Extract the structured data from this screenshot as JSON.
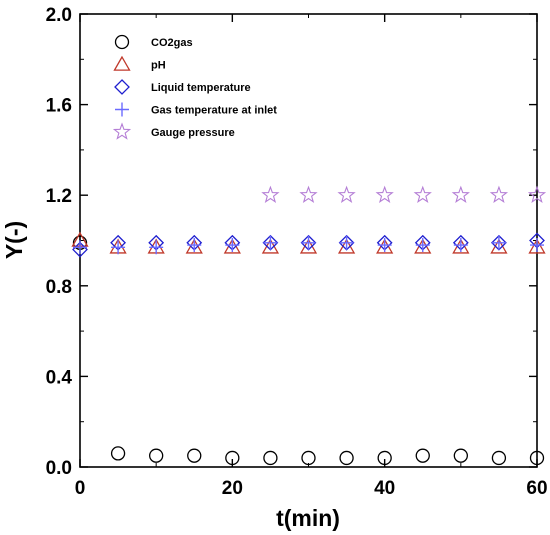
{
  "chart_data": {
    "type": "scatter",
    "xlabel": "t(min)",
    "ylabel": "Y(-)",
    "xlim": [
      0,
      60
    ],
    "ylim": [
      0,
      2.0
    ],
    "x_ticks": [
      "0",
      "20",
      "40",
      "60"
    ],
    "y_ticks": [
      "0.0",
      "0.4",
      "0.8",
      "1.2",
      "1.6",
      "2.0"
    ],
    "grid": false,
    "legend_position": "top-left",
    "series": [
      {
        "name": "CO2gas",
        "marker": "circle",
        "color": "#000000",
        "x": [
          0,
          5,
          10,
          15,
          20,
          25,
          30,
          35,
          40,
          45,
          50,
          55,
          60
        ],
        "y": [
          0.99,
          0.06,
          0.05,
          0.05,
          0.04,
          0.04,
          0.04,
          0.04,
          0.04,
          0.05,
          0.05,
          0.04,
          0.04
        ]
      },
      {
        "name": "pH",
        "marker": "triangle",
        "color": "#c0392b",
        "x": [
          0,
          5,
          10,
          15,
          20,
          25,
          30,
          35,
          40,
          45,
          50,
          55,
          60
        ],
        "y": [
          1.0,
          0.97,
          0.97,
          0.97,
          0.97,
          0.97,
          0.97,
          0.97,
          0.97,
          0.97,
          0.97,
          0.97,
          0.97
        ]
      },
      {
        "name": "Liquid temperature",
        "marker": "diamond",
        "color": "#1f1fcf",
        "x": [
          0,
          5,
          10,
          15,
          20,
          25,
          30,
          35,
          40,
          45,
          50,
          55,
          60
        ],
        "y": [
          0.96,
          0.99,
          0.99,
          0.99,
          0.99,
          0.99,
          0.99,
          0.99,
          0.99,
          0.99,
          0.99,
          0.99,
          1.0
        ]
      },
      {
        "name": "Gas temperature at inlet",
        "marker": "plus",
        "color": "#6b6bff",
        "x": [
          0,
          5,
          10,
          15,
          20,
          25,
          30,
          35,
          40,
          45,
          50,
          55,
          60
        ],
        "y": [
          0.97,
          0.97,
          0.97,
          0.98,
          0.98,
          0.99,
          0.99,
          0.99,
          0.98,
          0.98,
          0.98,
          0.99,
          0.98
        ]
      },
      {
        "name": "Gauge pressure",
        "marker": "star",
        "color": "#b57fd6",
        "x": [
          25,
          30,
          35,
          40,
          45,
          50,
          55,
          60
        ],
        "y": [
          1.2,
          1.2,
          1.2,
          1.2,
          1.2,
          1.2,
          1.2,
          1.2
        ]
      }
    ]
  }
}
